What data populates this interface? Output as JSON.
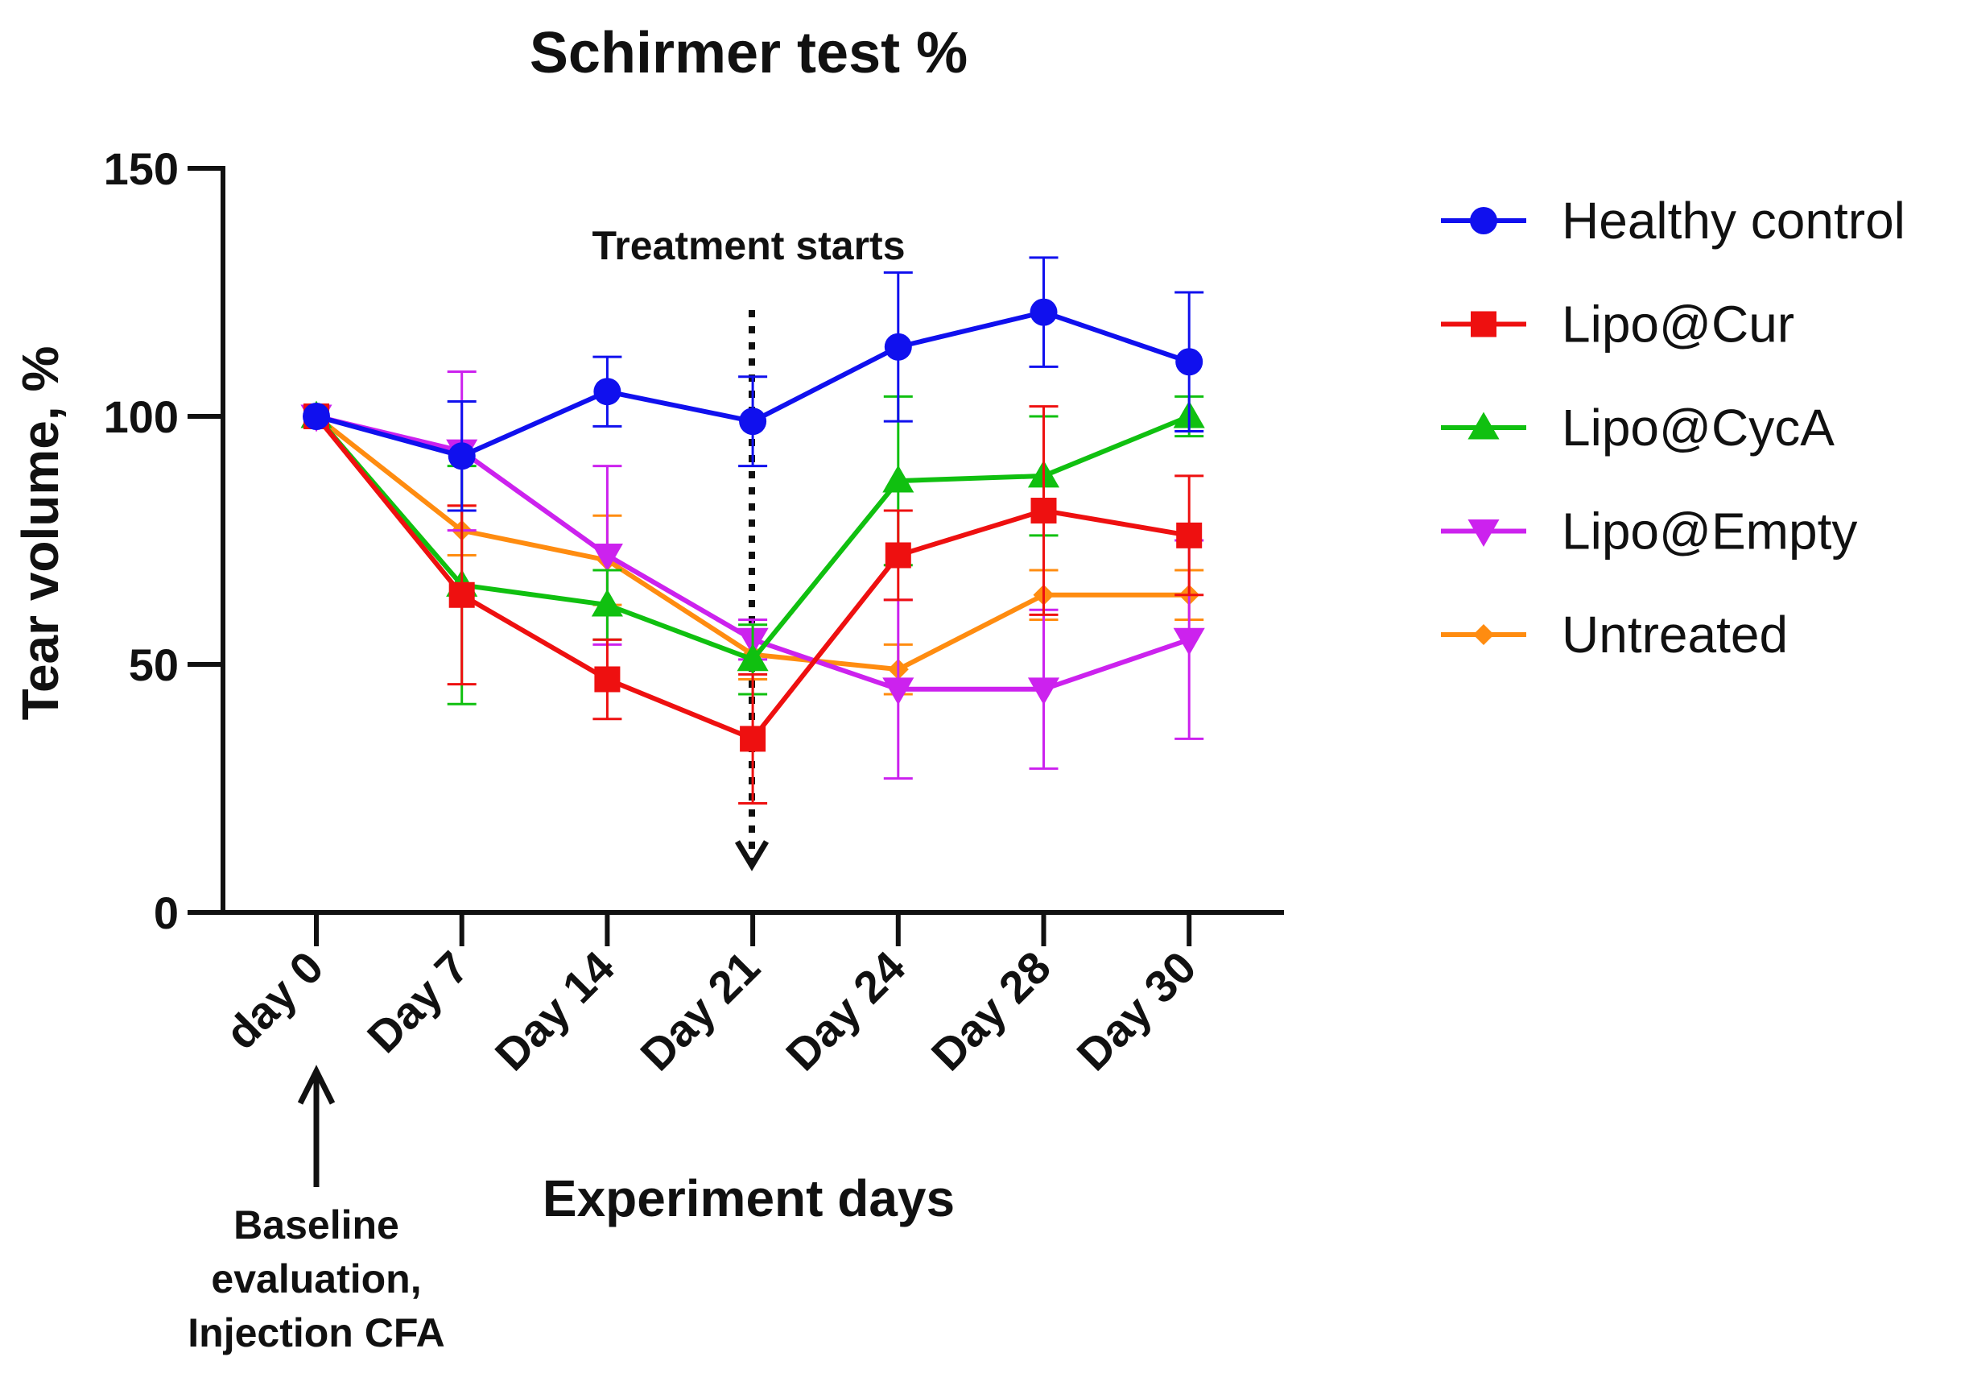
{
  "chart_data": {
    "type": "line",
    "title": "Schirmer test %",
    "xlabel": "Experiment days",
    "ylabel": "Tear volume, %",
    "categories": [
      "day 0",
      "Day 7",
      "Day 14",
      "Day 21",
      "Day 24",
      "Day 28",
      "Day 30"
    ],
    "ylim": [
      0,
      150
    ],
    "yticks": [
      0,
      50,
      100,
      150
    ],
    "legend_position": "right",
    "annotations": {
      "treatment": "Treatment starts",
      "baseline_lines": [
        "Baseline",
        "evaluation,",
        "Injection CFA"
      ]
    },
    "series": [
      {
        "name": "Healthy control",
        "color": "#1010ee",
        "marker": "circle",
        "values": [
          100,
          92,
          105,
          99,
          114,
          121,
          111
        ],
        "errors": [
          0,
          11,
          7,
          9,
          15,
          11,
          14
        ]
      },
      {
        "name": "Lipo@Cur",
        "color": "#ee1010",
        "marker": "square",
        "values": [
          100,
          64,
          47,
          35,
          72,
          81,
          76
        ],
        "errors": [
          0,
          18,
          8,
          13,
          9,
          21,
          12
        ]
      },
      {
        "name": "Lipo@CycA",
        "color": "#10c010",
        "marker": "triangle-up",
        "values": [
          100,
          66,
          62,
          51,
          87,
          88,
          100
        ],
        "errors": [
          0,
          24,
          7,
          7,
          17,
          12,
          4
        ]
      },
      {
        "name": "Lipo@Empty",
        "color": "#cc22ee",
        "marker": "triangle-down",
        "values": [
          100,
          93,
          72,
          55,
          45,
          45,
          55
        ],
        "errors": [
          0,
          16,
          18,
          4,
          18,
          16,
          20
        ]
      },
      {
        "name": "Untreated",
        "color": "#ff8c10",
        "marker": "diamond",
        "values": [
          100,
          77,
          71,
          52,
          49,
          64,
          64
        ],
        "errors": [
          0,
          5,
          9,
          5,
          5,
          5,
          5
        ]
      }
    ]
  }
}
